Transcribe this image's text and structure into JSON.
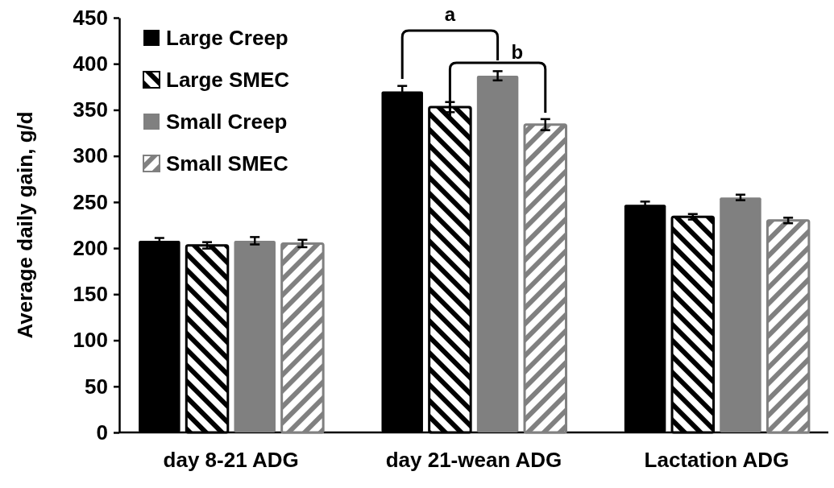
{
  "chart_data": {
    "type": "bar",
    "ylabel": "Average daily gain, g/d",
    "categories": [
      "day 8-21 ADG",
      "day 21-wean ADG",
      "Lactation ADG"
    ],
    "series": [
      {
        "name": "Large Creep",
        "color": "#000000",
        "values": [
          208,
          370,
          247
        ],
        "errors": [
          3,
          6,
          3.5
        ]
      },
      {
        "name": "Large SMEC",
        "color": "#000000",
        "values": [
          203,
          353,
          234
        ],
        "errors": [
          3.5,
          5.5,
          3
        ]
      },
      {
        "name": "Small Creep",
        "color": "#808080",
        "values": [
          208,
          387,
          255
        ],
        "errors": [
          4,
          5,
          3
        ]
      },
      {
        "name": "Small SMEC",
        "color": "#808080",
        "values": [
          205,
          334,
          230
        ],
        "errors": [
          4,
          6,
          3
        ]
      }
    ],
    "ylim": [
      0,
      450
    ],
    "yticks": [
      0,
      50,
      100,
      150,
      200,
      250,
      300,
      350,
      400,
      450
    ],
    "grid": false,
    "legend": "top left",
    "annotations": [
      "a",
      "b"
    ]
  }
}
